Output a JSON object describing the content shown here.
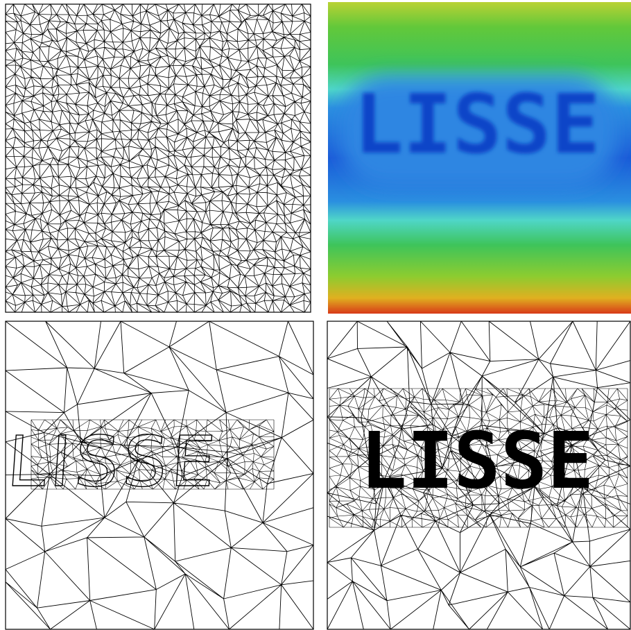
{
  "figure": {
    "word": "LISSE"
  }
}
